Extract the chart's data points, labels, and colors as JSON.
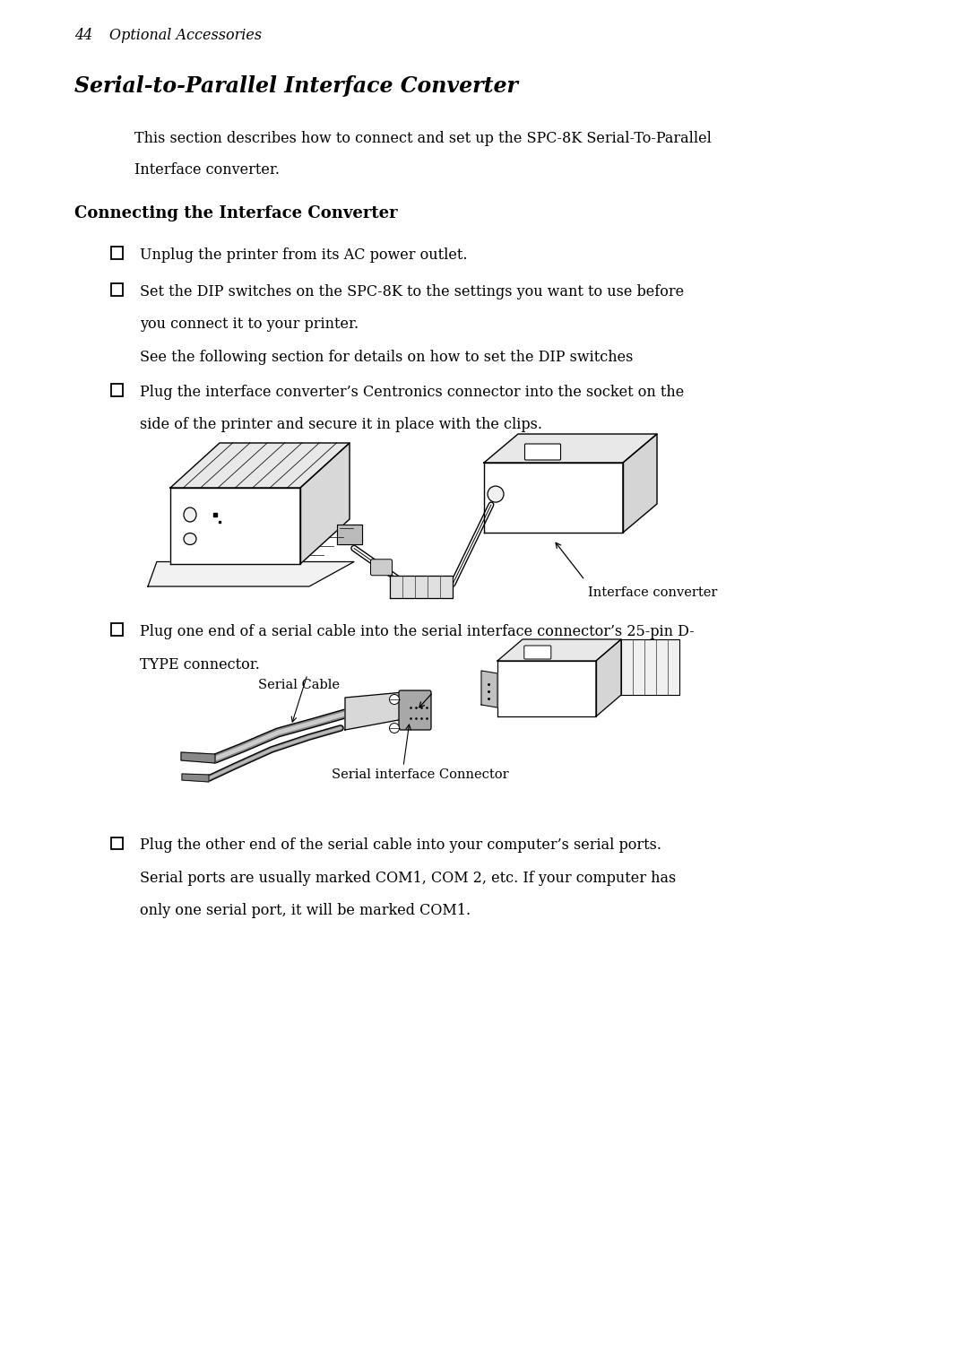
{
  "page_width": 10.8,
  "page_height": 15.29,
  "dpi": 100,
  "background_color": "#ffffff",
  "text_color": "#000000",
  "header_number": "44",
  "header_text": "Optional Accessories",
  "title": "Serial-to-Parallel Interface Converter",
  "intro_line1": "This section describes how to connect and set up the SPC-8K Serial-To-Parallel",
  "intro_line2": "Interface converter.",
  "section_heading": "Connecting the Interface Converter",
  "b1": "Unplug the printer from its AC power outlet.",
  "b2_l1": "Set the DIP switches on the SPC-8K to the settings you want to use before",
  "b2_l2": "you connect it to your printer.",
  "b2_l3": "See the following section for details on how to set the DIP switches",
  "b3_l1": "Plug the interface converter’s Centronics connector into the socket on the",
  "b3_l2": "side of the printer and secure it in place with the clips.",
  "label_ic": "Interface converter",
  "b4_l1": "Plug one end of a serial cable into the serial interface connector’s 25-pin D-",
  "b4_l2": "TYPE connector.",
  "label_sc": "Serial Cable",
  "label_sic": "Serial interface Connector",
  "b5_l1": "Plug the other end of the serial cable into your computer’s serial ports.",
  "b5_l2": "Serial ports are usually marked COM1, COM 2, etc. If your computer has",
  "b5_l3": "only one serial port, it will be marked COM1.",
  "body_fontsize": 11.5,
  "title_fontsize": 17,
  "heading_fontsize": 13,
  "header_fontsize": 11.5
}
